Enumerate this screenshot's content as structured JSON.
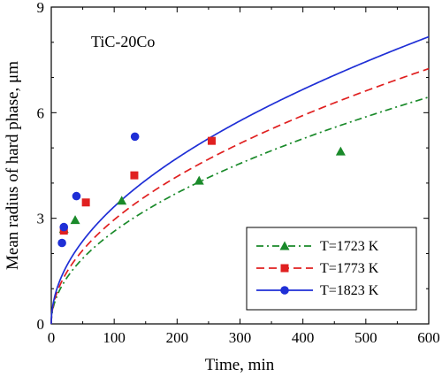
{
  "chart_data": {
    "type": "scatter",
    "annotation": "TiC-20Co",
    "xlabel": "Time, min",
    "ylabel": "Mean radius of hard phase, μm",
    "xlim": [
      0,
      600
    ],
    "ylim": [
      0,
      9
    ],
    "xticks": [
      0,
      100,
      200,
      300,
      400,
      500,
      600
    ],
    "yticks": [
      0,
      3,
      6,
      9
    ],
    "legend_position": "bottom-right",
    "series": [
      {
        "name": "T=1723 K",
        "color": "#1a8a2a",
        "marker": "triangle",
        "line": "dash-dot",
        "points": [
          [
            20,
            2.7
          ],
          [
            38,
            2.95
          ],
          [
            112,
            3.5
          ],
          [
            235,
            4.07
          ],
          [
            460,
            4.9
          ]
        ],
        "fit": {
          "k": 0.263,
          "n": 0.5
        }
      },
      {
        "name": "T=1773 K",
        "color": "#e02020",
        "marker": "square",
        "line": "dashed",
        "points": [
          [
            20,
            2.65
          ],
          [
            55,
            3.45
          ],
          [
            132,
            4.22
          ],
          [
            255,
            5.2
          ]
        ],
        "fit": {
          "k": 0.296,
          "n": 0.5
        }
      },
      {
        "name": "T=1823 K",
        "color": "#1f2fd6",
        "marker": "circle",
        "line": "solid",
        "points": [
          [
            17,
            2.3
          ],
          [
            20,
            2.75
          ],
          [
            40,
            3.63
          ],
          [
            133,
            5.32
          ]
        ],
        "fit": {
          "k": 0.333,
          "n": 0.5
        }
      }
    ]
  }
}
